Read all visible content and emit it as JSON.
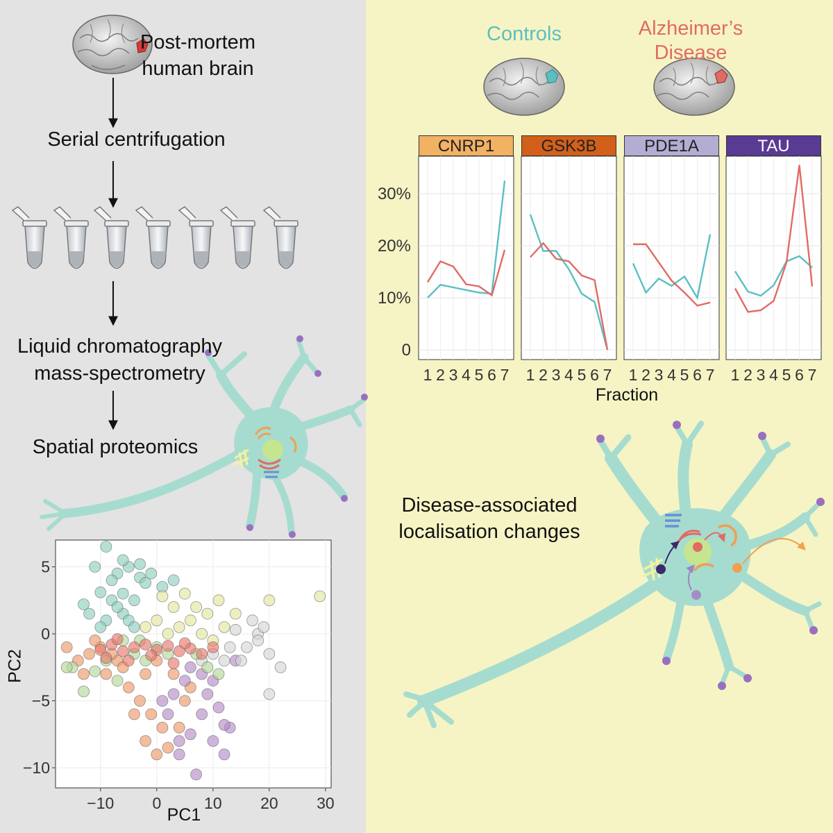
{
  "workflow": {
    "step1": [
      "Post-mortem",
      "human brain"
    ],
    "step2": "Serial centrifugation",
    "step3": [
      "Liquid chromatography",
      "mass-spectrometry"
    ],
    "step4": "Spatial proteomics"
  },
  "groups": {
    "controls": "Controls",
    "alzheimers": [
      "Alzheimer’s",
      "Disease"
    ],
    "controls_color": "#5bbfc1",
    "ad_color": "#e06b64"
  },
  "caption": [
    "Disease-associated",
    "localisation changes"
  ],
  "colors": {
    "left_bg": "#e3e3e3",
    "right_bg": "#f6f4c4",
    "neuron": "#a6dccf"
  },
  "chart_data": [
    {
      "type": "line",
      "xlabel": "Fraction",
      "ylabel": "",
      "x": [
        1,
        2,
        3,
        4,
        5,
        6,
        7
      ],
      "ylim": [
        0,
        0.36
      ],
      "yticks": [
        0,
        0.1,
        0.2,
        0.3
      ],
      "ytick_labels": [
        "0",
        "10%",
        "20%",
        "30%"
      ],
      "panels": [
        {
          "name": "CNRP1",
          "color": "#f2b163",
          "series": [
            {
              "group": "controls",
              "values": [
                0.1,
                0.125,
                0.12,
                0.115,
                0.11,
                0.108,
                0.325
              ]
            },
            {
              "group": "alzheimers",
              "values": [
                0.13,
                0.17,
                0.16,
                0.126,
                0.122,
                0.105,
                0.192
              ]
            }
          ]
        },
        {
          "name": "GSK3B",
          "color": "#d2601a",
          "series": [
            {
              "group": "controls",
              "values": [
                0.26,
                0.19,
                0.19,
                0.155,
                0.108,
                0.092,
                0.0
              ]
            },
            {
              "group": "alzheimers",
              "values": [
                0.178,
                0.205,
                0.175,
                0.17,
                0.143,
                0.134,
                0.0
              ]
            }
          ]
        },
        {
          "name": "PDE1A",
          "color": "#b4add3",
          "series": [
            {
              "group": "controls",
              "values": [
                0.166,
                0.11,
                0.137,
                0.123,
                0.141,
                0.1,
                0.222
              ]
            },
            {
              "group": "alzheimers",
              "values": [
                0.203,
                0.203,
                0.168,
                0.133,
                0.11,
                0.085,
                0.091
              ]
            }
          ]
        },
        {
          "name": "TAU",
          "color": "#5a3b93",
          "series": [
            {
              "group": "controls",
              "values": [
                0.151,
                0.112,
                0.104,
                0.124,
                0.17,
                0.18,
                0.158
              ]
            },
            {
              "group": "alzheimers",
              "values": [
                0.118,
                0.073,
                0.076,
                0.094,
                0.168,
                0.355,
                0.122
              ]
            }
          ]
        }
      ]
    },
    {
      "type": "scatter",
      "xlabel": "PC1",
      "ylabel": "PC2",
      "xlim": [
        -18,
        31
      ],
      "ylim": [
        -11.5,
        7
      ],
      "xticks": [
        -10,
        0,
        10,
        20,
        30
      ],
      "xtick_labels": [
        "−10",
        "0",
        "10",
        "20",
        "30"
      ],
      "yticks": [
        -10,
        -5,
        0,
        5
      ],
      "ytick_labels": [
        "−10",
        "−5",
        "0",
        "5"
      ],
      "groups": [
        {
          "color": "#8fcfc0",
          "points": [
            [
              -9,
              6.5
            ],
            [
              -7,
              4.5
            ],
            [
              -5,
              5
            ],
            [
              -3,
              4.2
            ],
            [
              -6,
              3
            ],
            [
              -10,
              3.1
            ],
            [
              -8,
              2.5
            ],
            [
              -12,
              1.5
            ],
            [
              -6,
              1.5
            ],
            [
              -4,
              2.5
            ],
            [
              -2,
              3.8
            ],
            [
              -11,
              5
            ],
            [
              -7,
              2
            ],
            [
              -5,
              1
            ],
            [
              -9,
              1
            ],
            [
              -4,
              0.5
            ],
            [
              -3,
              5.2
            ],
            [
              -8,
              4
            ],
            [
              -1,
              4.5
            ],
            [
              1,
              3.5
            ],
            [
              -13,
              2.2
            ],
            [
              -6,
              5.5
            ],
            [
              3,
              4
            ],
            [
              -10,
              0.5
            ]
          ]
        },
        {
          "color": "#ee9a6a",
          "points": [
            [
              -16,
              -1
            ],
            [
              -14,
              -2
            ],
            [
              -12,
              -1.5
            ],
            [
              -10,
              -1
            ],
            [
              -9,
              -3
            ],
            [
              -7,
              -2
            ],
            [
              -5,
              -4
            ],
            [
              -3,
              -5
            ],
            [
              -1,
              -6
            ],
            [
              1,
              -7
            ],
            [
              -2,
              -8
            ],
            [
              -4,
              -6
            ],
            [
              0,
              -9
            ],
            [
              2,
              -8.5
            ],
            [
              4,
              -7
            ],
            [
              -6,
              -2.5
            ],
            [
              -8,
              -1.5
            ],
            [
              3,
              -3
            ],
            [
              5,
              -5
            ],
            [
              -2,
              -3
            ],
            [
              -11,
              -0.5
            ],
            [
              -13,
              -3
            ],
            [
              0,
              -2
            ],
            [
              6,
              -4
            ]
          ]
        },
        {
          "color": "#b58dc9",
          "points": [
            [
              2,
              -6
            ],
            [
              4,
              -8
            ],
            [
              6,
              -7.5
            ],
            [
              8,
              -6
            ],
            [
              10,
              -8
            ],
            [
              12,
              -9
            ],
            [
              7,
              -10.5
            ],
            [
              5,
              -3.5
            ],
            [
              9,
              -4.5
            ],
            [
              11,
              -5.5
            ],
            [
              13,
              -7
            ],
            [
              3,
              -4.5
            ],
            [
              14,
              -2
            ],
            [
              6,
              -2.5
            ],
            [
              8,
              -3
            ],
            [
              10,
              -3.5
            ],
            [
              1,
              -5
            ],
            [
              12,
              -6.8
            ],
            [
              4,
              -9
            ]
          ]
        },
        {
          "color": "#e5e6a0",
          "points": [
            [
              0,
              1
            ],
            [
              3,
              2
            ],
            [
              5,
              3
            ],
            [
              7,
              2
            ],
            [
              9,
              1.5
            ],
            [
              11,
              2.5
            ],
            [
              4,
              0.5
            ],
            [
              6,
              1
            ],
            [
              8,
              0
            ],
            [
              10,
              -0.5
            ],
            [
              12,
              0.5
            ],
            [
              20,
              2.5
            ],
            [
              29,
              2.8
            ],
            [
              2,
              0
            ],
            [
              14,
              1.5
            ],
            [
              -2,
              0.5
            ],
            [
              1,
              2.8
            ]
          ]
        },
        {
          "color": "#d6d6d6",
          "points": [
            [
              17,
              1
            ],
            [
              18,
              0
            ],
            [
              16,
              -1
            ],
            [
              19,
              0.5
            ],
            [
              15,
              -2
            ],
            [
              13,
              -1
            ],
            [
              20,
              -1.5
            ],
            [
              22,
              -2.5
            ],
            [
              20,
              -4.5
            ],
            [
              18,
              -0.5
            ],
            [
              10,
              -1.5
            ],
            [
              12,
              -2
            ],
            [
              14,
              0.3
            ],
            [
              8,
              -2
            ]
          ]
        },
        {
          "color": "#b5d99a",
          "points": [
            [
              -15,
              -2.5
            ],
            [
              -13,
              -4.3
            ],
            [
              -11,
              -2.8
            ],
            [
              -9,
              -2
            ],
            [
              -6,
              -0.5
            ],
            [
              -4,
              -1.5
            ],
            [
              -2,
              -2
            ],
            [
              0,
              -1
            ],
            [
              2,
              -1.5
            ],
            [
              7,
              -1.5
            ],
            [
              9,
              -2.5
            ],
            [
              11,
              -3
            ],
            [
              -3,
              -0.5
            ],
            [
              -16,
              -2.5
            ],
            [
              -7,
              -3.5
            ]
          ]
        },
        {
          "color": "#e87a6d",
          "points": [
            [
              -10,
              -1.2
            ],
            [
              -8,
              -0.8
            ],
            [
              -6,
              -1.3
            ],
            [
              -4,
              -1
            ],
            [
              -2,
              -0.8
            ],
            [
              0,
              -1.2
            ],
            [
              2,
              -0.9
            ],
            [
              4,
              -1.3
            ],
            [
              6,
              -1.1
            ],
            [
              8,
              -1.5
            ],
            [
              10,
              -1
            ],
            [
              -9,
              -1.8
            ],
            [
              -5,
              -2
            ],
            [
              -1,
              -1.6
            ],
            [
              3,
              -2.2
            ],
            [
              5,
              -0.7
            ],
            [
              -7,
              -0.4
            ]
          ]
        }
      ]
    }
  ]
}
